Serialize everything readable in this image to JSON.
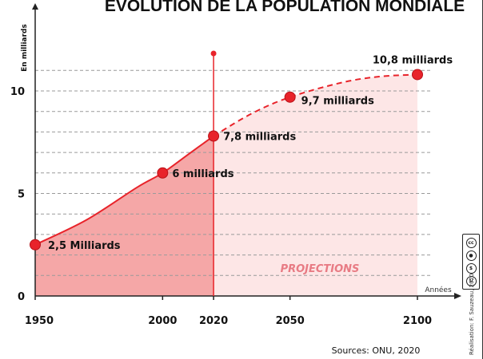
{
  "title": "ÉVOLUTION DE LA POPULATION MONDIALE",
  "source": "Sources: ONU, 2020",
  "credit": "Réalisation: F. Sauzeau, 2020",
  "license_icons": [
    "cc",
    "by",
    "nc",
    "sa"
  ],
  "colors": {
    "line": "#e8232a",
    "fill_past": "#f5a7a7",
    "fill_projection": "#fde6e6",
    "projection_text": "#e87b84",
    "axis": "#222222",
    "grid": "#9a9a9a"
  },
  "chart_data": {
    "type": "area",
    "title": "ÉVOLUTION DE LA POPULATION MONDIALE",
    "ylabel": "En milliards",
    "xlabel": "Années",
    "xlim": [
      1950,
      2100
    ],
    "ylim": [
      0,
      11.5
    ],
    "x_ticks": [
      1950,
      2000,
      2020,
      2050,
      2100
    ],
    "y_ticks": [
      0,
      5,
      10
    ],
    "grid": true,
    "divider_year": 2020,
    "projection_label": "PROJECTIONS",
    "series": [
      {
        "name": "observed",
        "style": "solid",
        "points": [
          [
            1950,
            2.5
          ],
          [
            1970,
            3.7
          ],
          [
            1990,
            5.3
          ],
          [
            2000,
            6.0
          ],
          [
            2010,
            6.9
          ],
          [
            2020,
            7.8
          ]
        ]
      },
      {
        "name": "projection",
        "style": "dashed",
        "points": [
          [
            2020,
            7.8
          ],
          [
            2035,
            8.9
          ],
          [
            2050,
            9.7
          ],
          [
            2070,
            10.4
          ],
          [
            2085,
            10.7
          ],
          [
            2100,
            10.8
          ]
        ]
      }
    ],
    "markers": [
      {
        "x": 1950,
        "y": 2.5,
        "label": "2,5 Milliards"
      },
      {
        "x": 2000,
        "y": 6.0,
        "label": "6 milliards"
      },
      {
        "x": 2020,
        "y": 7.8,
        "label": "7,8 milliards"
      },
      {
        "x": 2050,
        "y": 9.7,
        "label": "9,7 milliards"
      },
      {
        "x": 2100,
        "y": 10.8,
        "label": "10,8 milliards"
      }
    ]
  }
}
